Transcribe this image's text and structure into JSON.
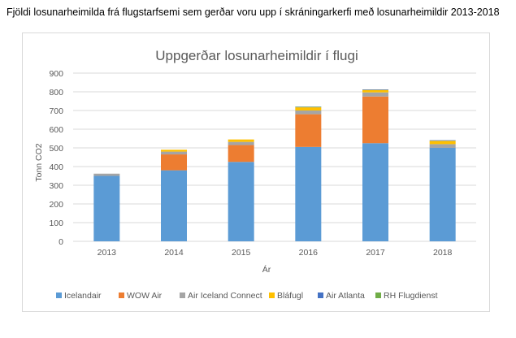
{
  "page": {
    "title": "Fjöldi losunarheimilda frá flugstarfsemi sem gerðar voru upp í skráningarkerfi með losunarheimildir 2013-2018"
  },
  "chart_data": {
    "type": "bar",
    "stacked": true,
    "title": "Uppgerðar losunarheimildir í flugi",
    "xlabel": "Ár",
    "ylabel": "Tonn CO2",
    "ylim": [
      0,
      900
    ],
    "yticks": [
      0,
      100,
      200,
      300,
      400,
      500,
      600,
      700,
      800,
      900
    ],
    "grid": true,
    "legend_position": "bottom",
    "categories": [
      "2013",
      "2014",
      "2015",
      "2016",
      "2017",
      "2018"
    ],
    "series": [
      {
        "name": "Icelandair",
        "color": "#5b9bd5",
        "values": [
          350,
          380,
          425,
          505,
          525,
          500
        ]
      },
      {
        "name": "WOW Air",
        "color": "#ed7d31",
        "values": [
          0,
          85,
          90,
          175,
          250,
          0
        ]
      },
      {
        "name": "Air Iceland Connect",
        "color": "#a5a5a5",
        "values": [
          12,
          15,
          17,
          20,
          22,
          20
        ]
      },
      {
        "name": "Bláfugl",
        "color": "#ffc000",
        "values": [
          0,
          10,
          13,
          17,
          13,
          18
        ]
      },
      {
        "name": "Air Atlanta",
        "color": "#4472c4",
        "values": [
          0,
          0,
          0,
          2,
          3,
          3
        ]
      },
      {
        "name": "RH Flugdienst",
        "color": "#70ad47",
        "values": [
          0,
          0,
          0,
          2,
          0,
          0
        ]
      }
    ]
  }
}
